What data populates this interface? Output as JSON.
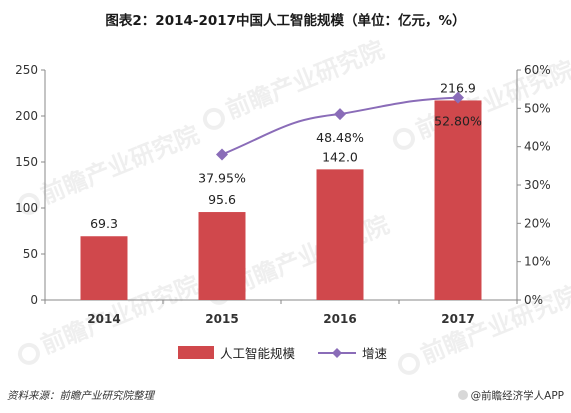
{
  "title": "图表2：2014-2017中国人工智能规模（单位：亿元，%）",
  "source": "资料来源：前瞻产业研究院整理",
  "app_credit": "@前瞻经济学人APP",
  "watermark": "前瞻产业研究院",
  "colors": {
    "bar": "#d0484c",
    "line": "#8a6cb8",
    "axis": "#888888"
  },
  "chart_data": {
    "type": "bar",
    "categories": [
      "2014",
      "2015",
      "2016",
      "2017"
    ],
    "series": [
      {
        "name": "人工智能规模",
        "type": "bar",
        "axis": "left",
        "values": [
          69.3,
          95.6,
          142.0,
          216.9
        ],
        "labels": [
          "69.3",
          "95.6",
          "142.0",
          "216.9"
        ]
      },
      {
        "name": "增速",
        "type": "line",
        "axis": "right",
        "values": [
          null,
          37.95,
          48.48,
          52.8
        ],
        "labels": [
          "",
          "37.95%",
          "48.48%",
          "52.80%"
        ]
      }
    ],
    "ylim_left": [
      0,
      250
    ],
    "yticks_left": [
      "0",
      "50",
      "100",
      "150",
      "200",
      "250"
    ],
    "ylim_right": [
      0,
      60
    ],
    "yticks_right": [
      "0%",
      "10%",
      "20%",
      "30%",
      "40%",
      "50%",
      "60%"
    ],
    "legend_position": "bottom"
  }
}
